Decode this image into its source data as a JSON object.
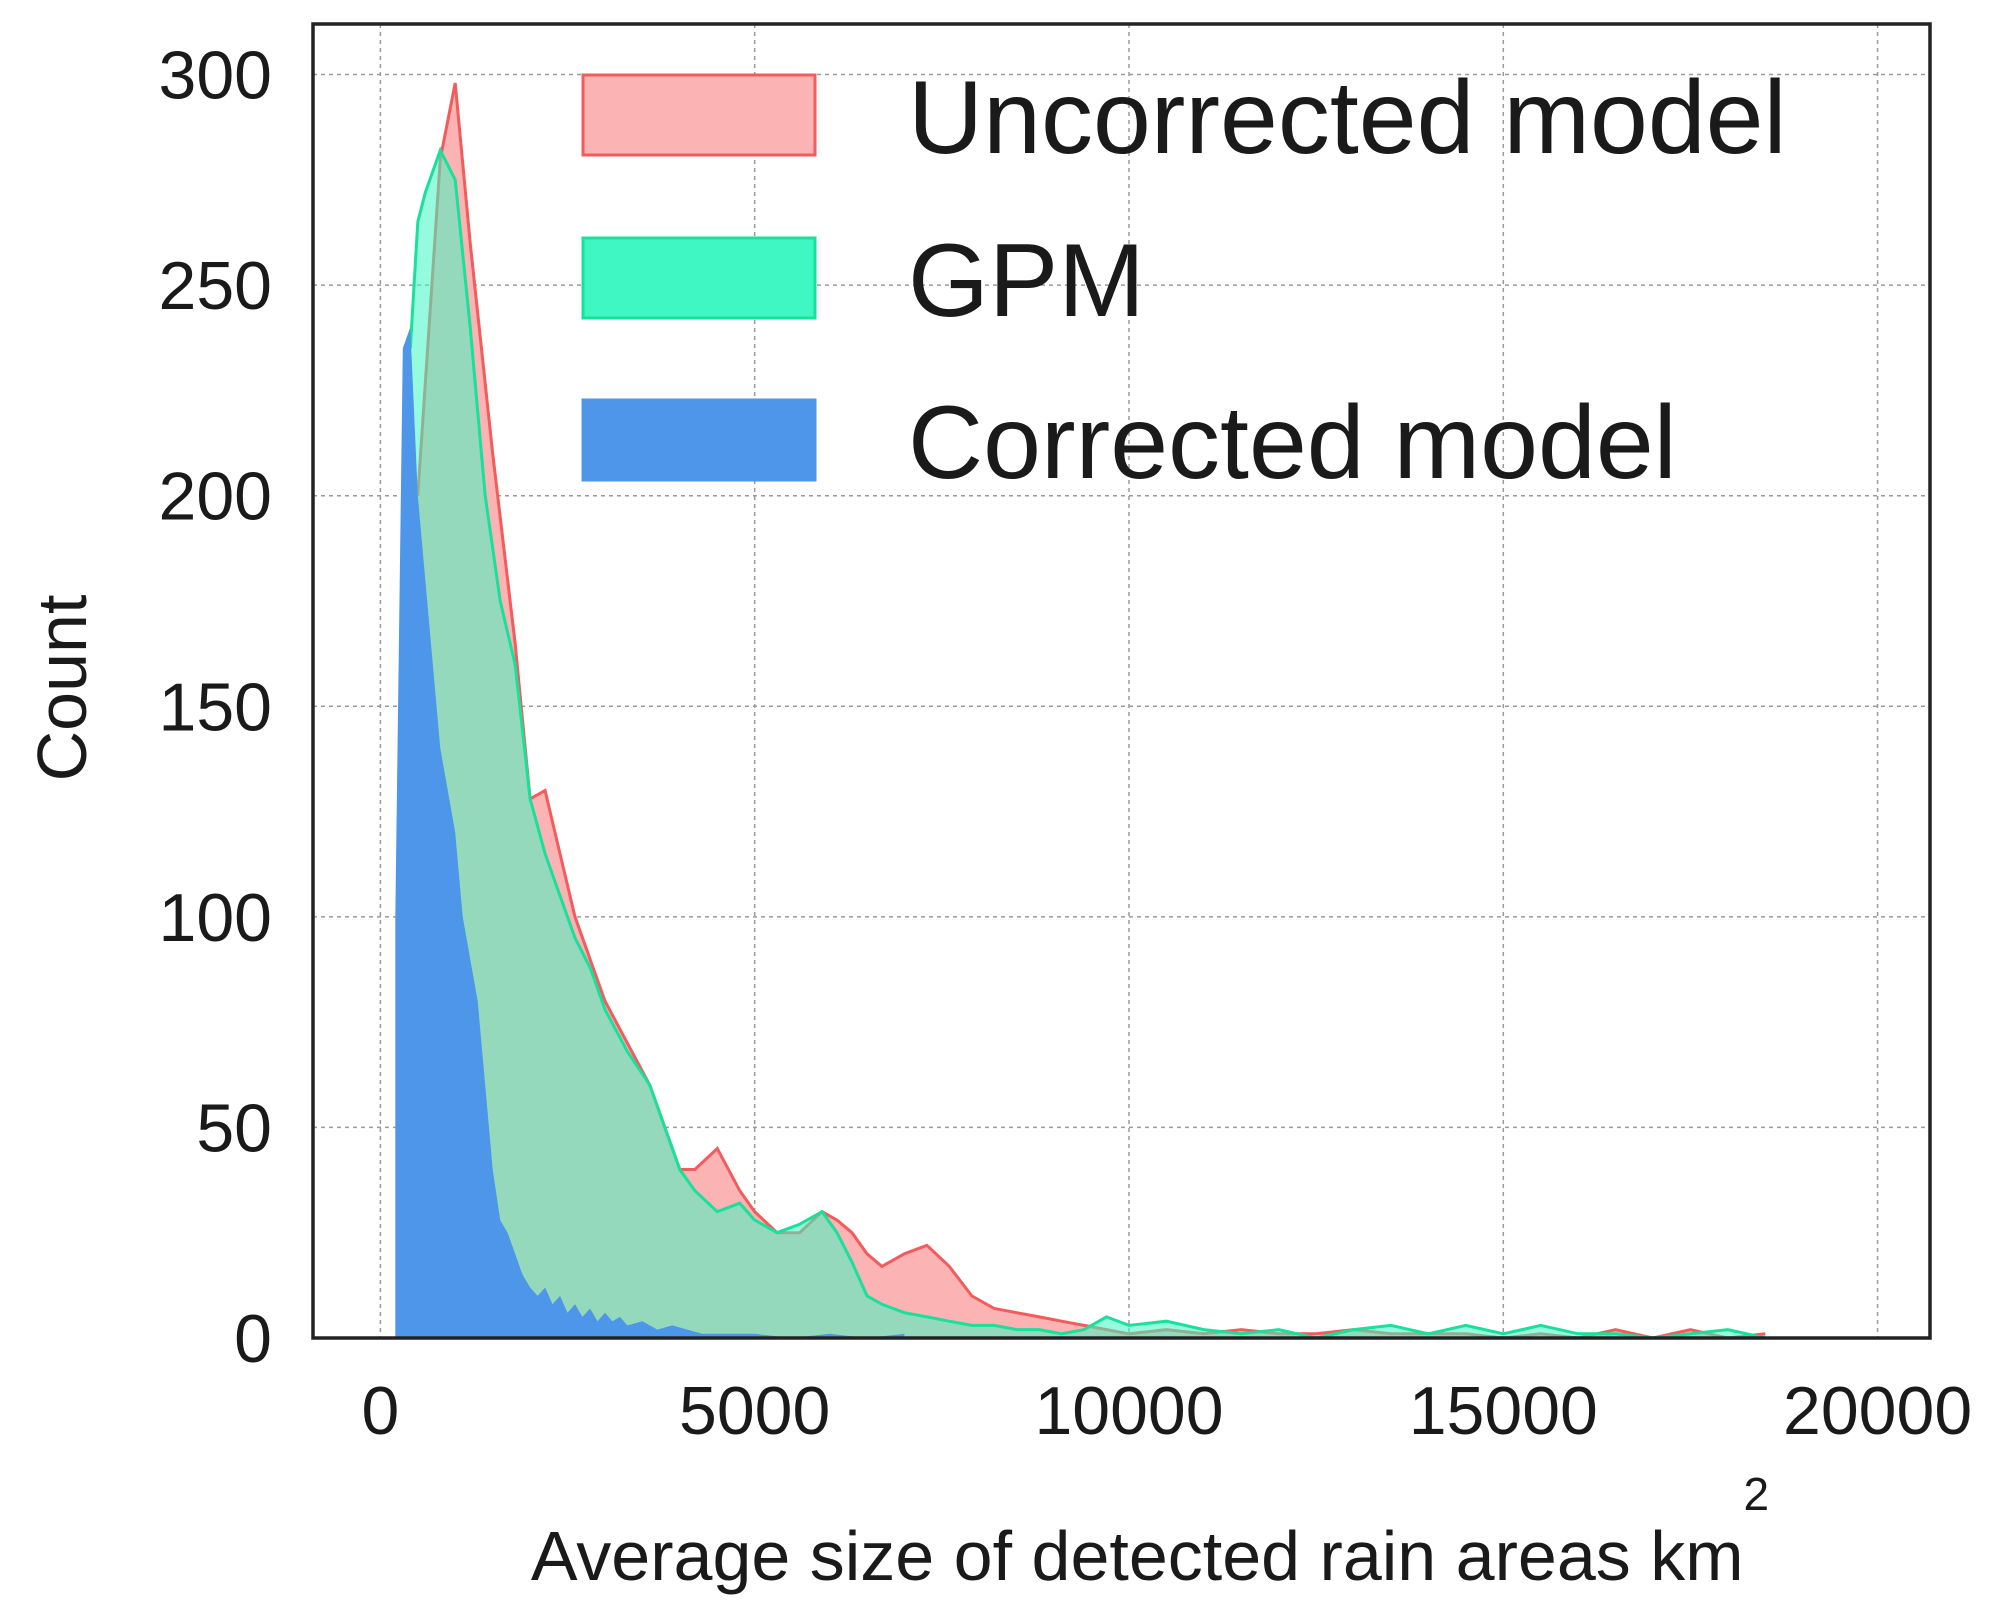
{
  "chart_data": {
    "type": "area",
    "xlabel": "Average size of detected rain areas km",
    "xlabel_superscript": "2",
    "ylabel": "Count",
    "xlim": [
      -900,
      20700
    ],
    "ylim": [
      0,
      312
    ],
    "xticks": [
      0,
      5000,
      10000,
      15000,
      20000
    ],
    "yticks": [
      0,
      50,
      100,
      150,
      200,
      250,
      300
    ],
    "xtick_labels": [
      "0",
      "5000",
      "10000",
      "15000",
      "20000"
    ],
    "ytick_labels": [
      "0",
      "50",
      "100",
      "150",
      "200",
      "250",
      "300"
    ],
    "grid": true,
    "legend_position": "top-right",
    "series": [
      {
        "name": "Uncorrected model",
        "color": "#f25c5c",
        "fill": "#fbb3b3",
        "x": [
          500,
          800,
          1000,
          1200,
          1500,
          1800,
          2000,
          2200,
          2400,
          2600,
          2800,
          3000,
          3300,
          3600,
          3800,
          4000,
          4200,
          4500,
          4800,
          5000,
          5300,
          5600,
          5900,
          6100,
          6300,
          6500,
          6700,
          7000,
          7300,
          7600,
          7900,
          8200,
          8500,
          8800,
          9100,
          9400,
          9700,
          10000,
          10500,
          11000,
          11500,
          12000,
          12500,
          13000,
          13500,
          14000,
          14500,
          15000,
          15500,
          16000,
          16500,
          17000,
          17500,
          18000,
          18500
        ],
        "values": [
          200,
          280,
          298,
          260,
          210,
          165,
          128,
          130,
          115,
          100,
          90,
          80,
          70,
          60,
          50,
          40,
          40,
          45,
          35,
          30,
          25,
          25,
          30,
          28,
          25,
          20,
          17,
          20,
          22,
          17,
          10,
          7,
          6,
          5,
          4,
          3,
          2,
          1,
          2,
          1,
          2,
          1,
          1,
          2,
          1,
          1,
          1,
          0,
          1,
          0,
          2,
          0,
          2,
          0,
          1
        ]
      },
      {
        "name": "GPM",
        "color": "#19e09a",
        "fill": "#3ff7c3",
        "x": [
          400,
          500,
          600,
          800,
          1000,
          1200,
          1400,
          1600,
          1800,
          2000,
          2200,
          2400,
          2600,
          2800,
          3000,
          3300,
          3600,
          3800,
          4000,
          4200,
          4500,
          4800,
          5000,
          5300,
          5600,
          5900,
          6100,
          6300,
          6500,
          6700,
          7000,
          7300,
          7600,
          7900,
          8200,
          8500,
          8800,
          9100,
          9400,
          9700,
          10000,
          10500,
          11000,
          11500,
          12000,
          12500,
          13000,
          13500,
          14000,
          14500,
          15000,
          15500,
          16000,
          16500,
          17000,
          17500,
          18000,
          18500
        ],
        "values": [
          235,
          265,
          272,
          282,
          275,
          240,
          200,
          175,
          160,
          128,
          115,
          105,
          95,
          88,
          78,
          68,
          60,
          50,
          40,
          35,
          30,
          32,
          28,
          25,
          27,
          30,
          25,
          18,
          10,
          8,
          6,
          5,
          4,
          3,
          3,
          2,
          2,
          1,
          2,
          5,
          3,
          4,
          2,
          1,
          2,
          0,
          2,
          3,
          1,
          3,
          1,
          3,
          1,
          1,
          0,
          1,
          2,
          0
        ]
      },
      {
        "name": "Corrected model",
        "color": "#4d96e9",
        "fill": "#4d96e9",
        "x": [
          200,
          300,
          400,
          500,
          600,
          700,
          800,
          900,
          1000,
          1100,
          1200,
          1300,
          1400,
          1500,
          1600,
          1700,
          1800,
          1900,
          2000,
          2100,
          2200,
          2300,
          2400,
          2500,
          2600,
          2700,
          2800,
          2900,
          3000,
          3100,
          3200,
          3300,
          3500,
          3700,
          3900,
          4100,
          4300,
          4600,
          5000,
          5500,
          6000,
          6500,
          7000
        ],
        "values": [
          100,
          235,
          240,
          200,
          180,
          160,
          140,
          130,
          120,
          100,
          90,
          80,
          60,
          40,
          28,
          25,
          20,
          15,
          12,
          10,
          12,
          8,
          10,
          6,
          8,
          5,
          7,
          4,
          6,
          4,
          5,
          3,
          4,
          2,
          3,
          2,
          1,
          1,
          1,
          0,
          1,
          0,
          1
        ]
      }
    ]
  }
}
